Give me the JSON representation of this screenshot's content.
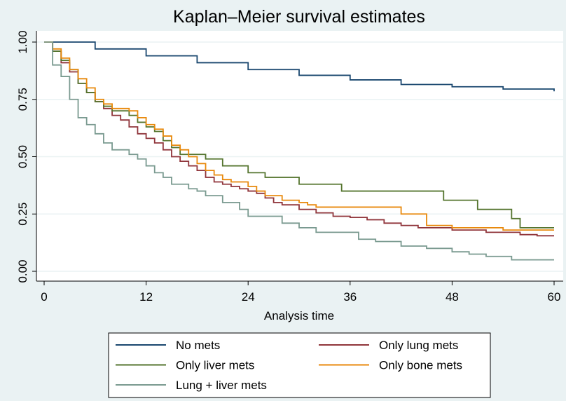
{
  "chart_data": {
    "type": "line",
    "drawstyle": "steps-post",
    "title": "Kaplan–Meier survival estimates",
    "x_label": "Analysis time",
    "xlim": [
      0,
      60
    ],
    "xticks": [
      0,
      12,
      24,
      36,
      48,
      60
    ],
    "ylim": [
      0,
      1
    ],
    "yticks": [
      {
        "value": 0,
        "label": "0.00"
      },
      {
        "value": 0.25,
        "label": "0.25"
      },
      {
        "value": 0.5,
        "label": "0.50"
      },
      {
        "value": 0.75,
        "label": "0.75"
      },
      {
        "value": 1,
        "label": "1.00"
      }
    ],
    "grid": true,
    "legend_position": "bottom",
    "series": [
      {
        "name": "No mets",
        "color": "#1a476f",
        "x": [
          0,
          6,
          12,
          18,
          24,
          30,
          36,
          42,
          48,
          54,
          60
        ],
        "values": [
          1,
          0.97,
          0.94,
          0.91,
          0.88,
          0.855,
          0.835,
          0.815,
          0.805,
          0.795,
          0.785
        ]
      },
      {
        "name": "Only lung mets",
        "color": "#90353b",
        "x": [
          0,
          1,
          2,
          3,
          4,
          5,
          6,
          7,
          8,
          9,
          10,
          11,
          12,
          13,
          14,
          15,
          16,
          17,
          18,
          19,
          20,
          21,
          22,
          23,
          24,
          25,
          26,
          27,
          28,
          30,
          32,
          34,
          36,
          38,
          40,
          42,
          44,
          48,
          52,
          56,
          58,
          60
        ],
        "values": [
          1,
          0.96,
          0.91,
          0.87,
          0.82,
          0.78,
          0.74,
          0.71,
          0.68,
          0.66,
          0.63,
          0.6,
          0.58,
          0.56,
          0.53,
          0.5,
          0.48,
          0.46,
          0.44,
          0.41,
          0.39,
          0.38,
          0.37,
          0.36,
          0.35,
          0.34,
          0.32,
          0.3,
          0.29,
          0.27,
          0.255,
          0.24,
          0.235,
          0.225,
          0.21,
          0.2,
          0.19,
          0.18,
          0.17,
          0.16,
          0.155,
          0.155
        ]
      },
      {
        "name": "Only liver mets",
        "color": "#55752f",
        "x": [
          0,
          1,
          2,
          3,
          4,
          5,
          6,
          7,
          8,
          10,
          11,
          12,
          13,
          14,
          15,
          16,
          19,
          21,
          24,
          26,
          30,
          35,
          42,
          47,
          51,
          55,
          56,
          60
        ],
        "values": [
          1,
          0.96,
          0.92,
          0.88,
          0.82,
          0.78,
          0.74,
          0.72,
          0.7,
          0.68,
          0.65,
          0.63,
          0.61,
          0.57,
          0.54,
          0.51,
          0.49,
          0.46,
          0.43,
          0.41,
          0.38,
          0.35,
          0.35,
          0.31,
          0.27,
          0.23,
          0.19,
          0.19
        ]
      },
      {
        "name": "Only bone mets",
        "color": "#e8890c",
        "x": [
          0,
          1,
          2,
          3,
          4,
          5,
          6,
          7,
          8,
          10,
          11,
          12,
          13,
          14,
          15,
          16,
          17,
          18,
          19,
          20,
          21,
          22,
          24,
          25,
          26,
          28,
          30,
          31,
          32,
          40,
          42,
          44,
          45,
          48,
          50,
          54,
          60
        ],
        "values": [
          1,
          0.97,
          0.93,
          0.88,
          0.84,
          0.8,
          0.75,
          0.73,
          0.71,
          0.7,
          0.67,
          0.64,
          0.62,
          0.59,
          0.55,
          0.53,
          0.5,
          0.47,
          0.44,
          0.42,
          0.4,
          0.39,
          0.37,
          0.35,
          0.33,
          0.31,
          0.3,
          0.29,
          0.28,
          0.28,
          0.25,
          0.25,
          0.2,
          0.19,
          0.19,
          0.18,
          0.18
        ]
      },
      {
        "name": "Lung + liver mets",
        "color": "#7a9a90",
        "x": [
          0,
          1,
          2,
          3,
          4,
          5,
          6,
          7,
          8,
          10,
          11,
          12,
          13,
          14,
          15,
          17,
          18,
          19,
          21,
          23,
          24,
          28,
          30,
          32,
          37,
          39,
          42,
          45,
          48,
          50,
          52,
          55,
          60
        ],
        "values": [
          1,
          0.9,
          0.85,
          0.75,
          0.67,
          0.64,
          0.6,
          0.56,
          0.53,
          0.51,
          0.49,
          0.46,
          0.43,
          0.41,
          0.38,
          0.36,
          0.35,
          0.33,
          0.3,
          0.27,
          0.24,
          0.21,
          0.19,
          0.17,
          0.14,
          0.13,
          0.11,
          0.1,
          0.085,
          0.075,
          0.065,
          0.05,
          0.05
        ]
      }
    ]
  }
}
